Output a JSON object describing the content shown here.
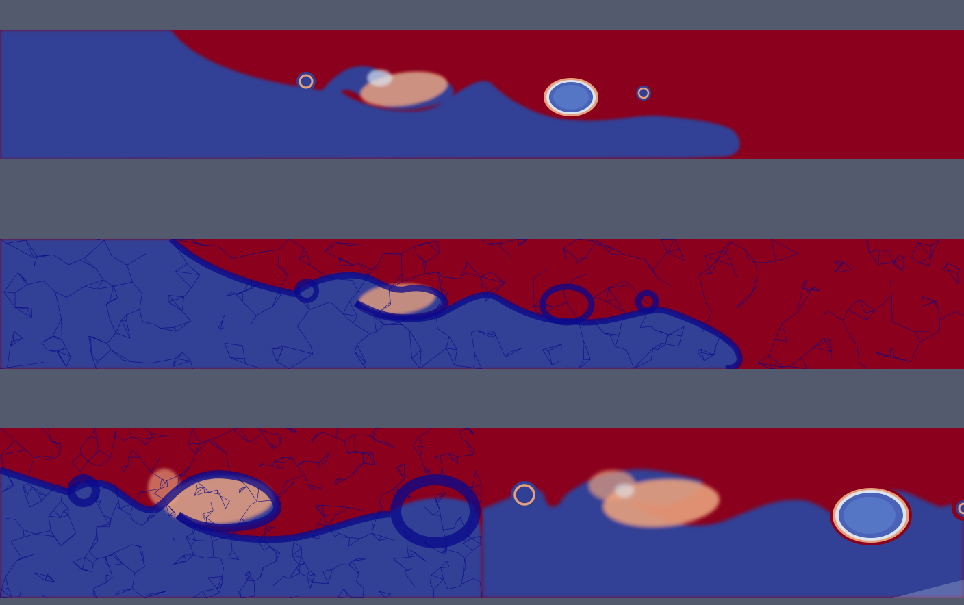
{
  "background_color": "#545a6e",
  "colormap": {
    "low_color": "#313f95",
    "high_color": "#8b001c",
    "mid_warm": "#e8a07c",
    "mid_light": "#dce4f0",
    "mesh_edge": "#0a0a8c"
  },
  "views": [
    {
      "name": "full-field",
      "representation": "surface",
      "zoom": "full"
    },
    {
      "name": "full-field-mesh",
      "representation": "surface-with-edges",
      "zoom": "full"
    },
    {
      "name": "zoomed-mesh",
      "representation": "surface-with-edges",
      "zoom": "left-zoom"
    },
    {
      "name": "zoomed-field",
      "representation": "surface",
      "zoom": "right-zoom"
    }
  ]
}
